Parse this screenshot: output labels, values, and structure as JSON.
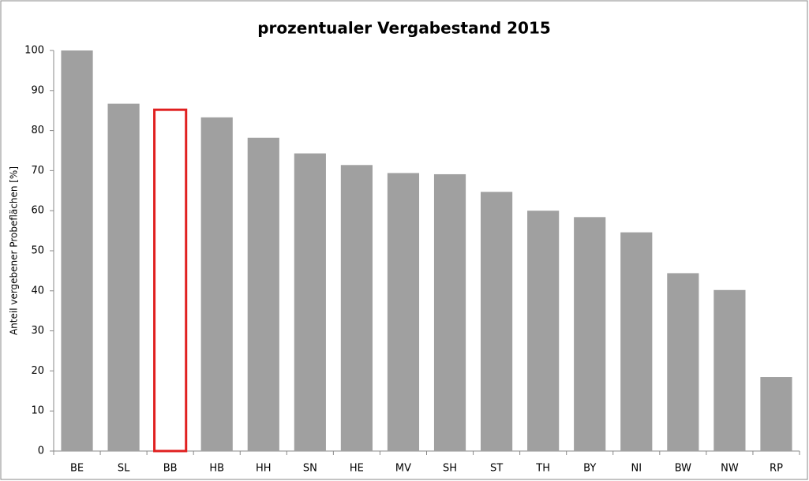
{
  "chart_data": {
    "type": "bar",
    "title": "prozentualer Vergabestand 2015",
    "ylabel": "Anteil vergebener Probeflächen [%]",
    "categories": [
      "BE",
      "SL",
      "BB",
      "HB",
      "HH",
      "SN",
      "HE",
      "MV",
      "SH",
      "ST",
      "TH",
      "BY",
      "NI",
      "BW",
      "NW",
      "RP"
    ],
    "values": [
      100,
      86.7,
      85.2,
      83.3,
      78.2,
      74.3,
      71.4,
      69.4,
      69.1,
      64.7,
      60.0,
      58.4,
      54.6,
      44.4,
      40.2,
      18.5
    ],
    "colors": [
      "#a0a0a0",
      "#a0a0a0",
      "#ffffff",
      "#a0a0a0",
      "#a0a0a0",
      "#a0a0a0",
      "#a0a0a0",
      "#a0a0a0",
      "#a0a0a0",
      "#a0a0a0",
      "#a0a0a0",
      "#a0a0a0",
      "#a0a0a0",
      "#a0a0a0",
      "#a0a0a0",
      "#a0a0a0"
    ],
    "edgecolors": [
      "none",
      "none",
      "#e02020",
      "none",
      "none",
      "none",
      "none",
      "none",
      "none",
      "none",
      "none",
      "none",
      "none",
      "none",
      "none",
      "none"
    ],
    "ylim": [
      0,
      100
    ],
    "yticks": [
      0,
      10,
      20,
      30,
      40,
      50,
      60,
      70,
      80,
      90,
      100
    ],
    "grid": false
  }
}
